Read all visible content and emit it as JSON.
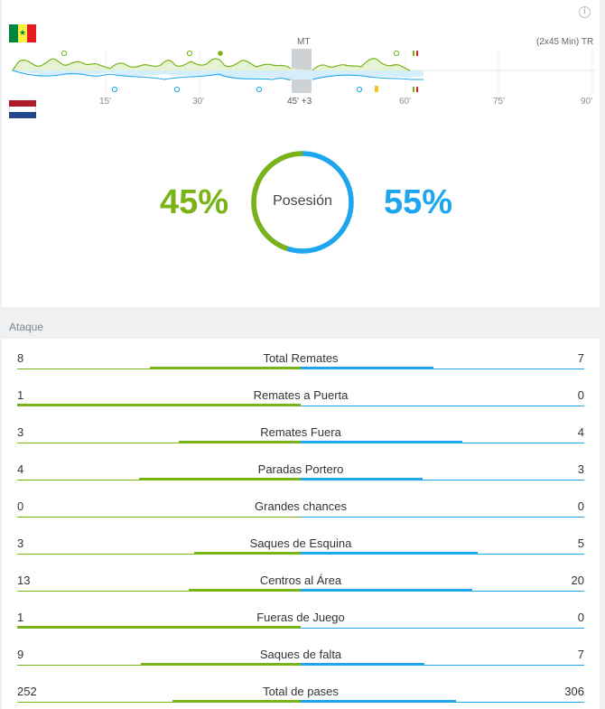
{
  "colors": {
    "home": "#7ab317",
    "away": "#1da6ee"
  },
  "header": {
    "info_icon": "i"
  },
  "teams": {
    "home": {
      "flag": "senegal-flag",
      "flag_colors": [
        "#00853f",
        "#fdef42",
        "#e31b23"
      ]
    },
    "away": {
      "flag": "netherlands-flag",
      "flag_colors": [
        "#ae1c28",
        "#ffffff",
        "#21468b"
      ]
    }
  },
  "timeline": {
    "halftime_label": "MT",
    "format_label": "(2x45 Min) TR",
    "ticks": [
      "15'",
      "30'",
      "45' +3",
      "60'",
      "75'",
      "90'"
    ]
  },
  "possession": {
    "title": "Posesión",
    "home_pct": "45%",
    "away_pct": "55%",
    "home_value": 45,
    "away_value": 55
  },
  "section": {
    "title": "Ataque"
  },
  "stats": [
    {
      "name": "Total Remates",
      "home": "8",
      "away": "7"
    },
    {
      "name": "Remates a Puerta",
      "home": "1",
      "away": "0"
    },
    {
      "name": "Remates Fuera",
      "home": "3",
      "away": "4"
    },
    {
      "name": "Paradas Portero",
      "home": "4",
      "away": "3"
    },
    {
      "name": "Grandes chances",
      "home": "0",
      "away": "0"
    },
    {
      "name": "Saques de Esquina",
      "home": "3",
      "away": "5"
    },
    {
      "name": "Centros al Área",
      "home": "13",
      "away": "20"
    },
    {
      "name": "Fueras de Juego",
      "home": "1",
      "away": "0"
    },
    {
      "name": "Saques de falta",
      "home": "9",
      "away": "7"
    },
    {
      "name": "Total de pases",
      "home": "252",
      "away": "306"
    }
  ]
}
